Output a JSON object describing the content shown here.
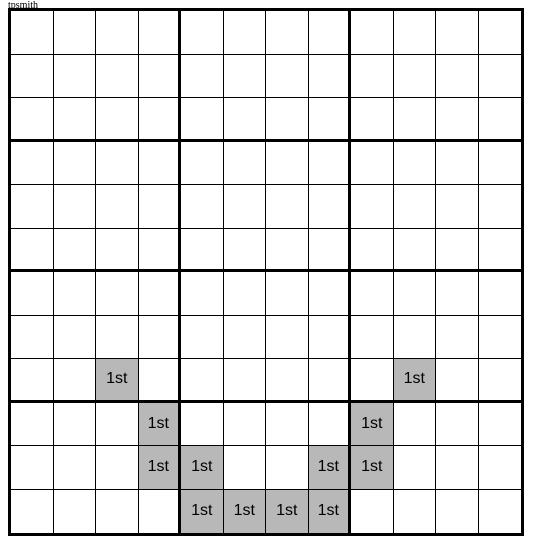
{
  "watermark": "tpsmith",
  "grid": {
    "rows": 12,
    "cols": 12,
    "box_rows": 3,
    "box_cols": 4,
    "cell_bg": "#ffffff",
    "filled_bg": "#b8b8b8",
    "border_color": "#000000",
    "cells": [
      {
        "r": 8,
        "c": 2,
        "text": "1st"
      },
      {
        "r": 8,
        "c": 9,
        "text": "1st"
      },
      {
        "r": 9,
        "c": 3,
        "text": "1st"
      },
      {
        "r": 9,
        "c": 8,
        "text": "1st"
      },
      {
        "r": 10,
        "c": 3,
        "text": "1st"
      },
      {
        "r": 10,
        "c": 4,
        "text": "1st"
      },
      {
        "r": 10,
        "c": 7,
        "text": "1st"
      },
      {
        "r": 10,
        "c": 8,
        "text": "1st"
      },
      {
        "r": 11,
        "c": 4,
        "text": "1st"
      },
      {
        "r": 11,
        "c": 5,
        "text": "1st"
      },
      {
        "r": 11,
        "c": 6,
        "text": "1st"
      },
      {
        "r": 11,
        "c": 7,
        "text": "1st"
      }
    ]
  }
}
